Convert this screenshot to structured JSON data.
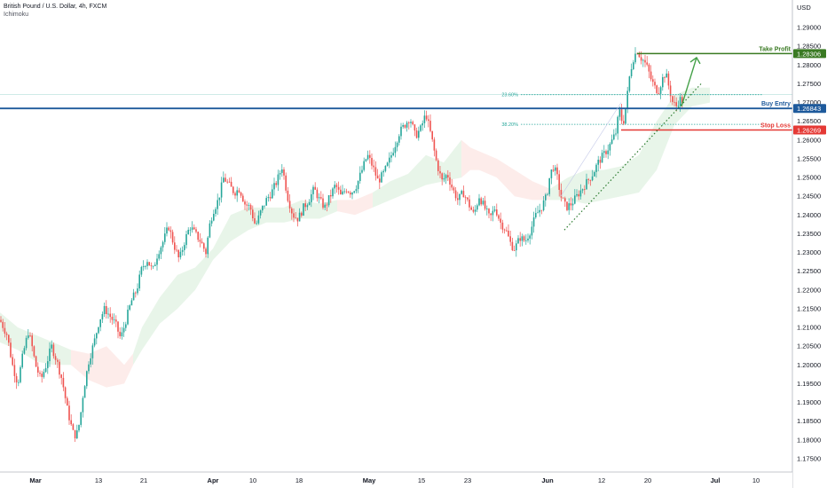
{
  "header": {
    "symbol_line": "British Pound / U.S. Dollar, 4h, FXCM",
    "indicator": "Ichimoku"
  },
  "chart_data": {
    "type": "candlestick",
    "title": "British Pound / U.S. Dollar, 4h, FXCM",
    "ylabel": "USD",
    "ylim": [
      1.17,
      1.295
    ],
    "y_ticks": [
      "1.29000",
      "1.28500",
      "1.28000",
      "1.27500",
      "1.27000",
      "1.26500",
      "1.26000",
      "1.25500",
      "1.25000",
      "1.24500",
      "1.24000",
      "1.23500",
      "1.23000",
      "1.22500",
      "1.22000",
      "1.21500",
      "1.21000",
      "1.20500",
      "1.20000",
      "1.19500",
      "1.19000",
      "1.18500",
      "1.18000",
      "1.17500"
    ],
    "x_labels": [
      "Mar",
      "13",
      "21",
      "Apr",
      "10",
      "18",
      "May",
      "15",
      "23",
      "Jun",
      "12",
      "20",
      "Jul",
      "10"
    ],
    "price_path": [
      [
        0,
        1.212
      ],
      [
        8,
        1.208
      ],
      [
        14,
        1.2
      ],
      [
        20,
        1.195
      ],
      [
        26,
        1.203
      ],
      [
        32,
        1.209
      ],
      [
        36,
        1.205
      ],
      [
        40,
        1.2
      ],
      [
        46,
        1.196
      ],
      [
        52,
        1.2
      ],
      [
        58,
        1.205
      ],
      [
        64,
        1.201
      ],
      [
        70,
        1.196
      ],
      [
        76,
        1.188
      ],
      [
        82,
        1.182
      ],
      [
        86,
        1.181
      ],
      [
        90,
        1.185
      ],
      [
        94,
        1.193
      ],
      [
        100,
        1.201
      ],
      [
        106,
        1.206
      ],
      [
        112,
        1.212
      ],
      [
        118,
        1.215
      ],
      [
        124,
        1.213
      ],
      [
        130,
        1.211
      ],
      [
        136,
        1.207
      ],
      [
        142,
        1.212
      ],
      [
        148,
        1.217
      ],
      [
        154,
        1.22
      ],
      [
        160,
        1.226
      ],
      [
        166,
        1.228
      ],
      [
        172,
        1.225
      ],
      [
        178,
        1.23
      ],
      [
        184,
        1.233
      ],
      [
        190,
        1.237
      ],
      [
        196,
        1.232
      ],
      [
        202,
        1.228
      ],
      [
        208,
        1.233
      ],
      [
        214,
        1.237
      ],
      [
        220,
        1.235
      ],
      [
        226,
        1.233
      ],
      [
        232,
        1.23
      ],
      [
        236,
        1.237
      ],
      [
        240,
        1.241
      ],
      [
        246,
        1.244
      ],
      [
        252,
        1.25
      ],
      [
        258,
        1.248
      ],
      [
        264,
        1.246
      ],
      [
        270,
        1.247
      ],
      [
        276,
        1.243
      ],
      [
        282,
        1.242
      ],
      [
        288,
        1.237
      ],
      [
        294,
        1.241
      ],
      [
        300,
        1.244
      ],
      [
        306,
        1.246
      ],
      [
        312,
        1.249
      ],
      [
        318,
        1.253
      ],
      [
        324,
        1.245
      ],
      [
        330,
        1.24
      ],
      [
        336,
        1.239
      ],
      [
        342,
        1.242
      ],
      [
        348,
        1.244
      ],
      [
        354,
        1.247
      ],
      [
        360,
        1.244
      ],
      [
        366,
        1.242
      ],
      [
        372,
        1.245
      ],
      [
        378,
        1.248
      ],
      [
        384,
        1.245
      ],
      [
        390,
        1.247
      ],
      [
        396,
        1.246
      ],
      [
        402,
        1.248
      ],
      [
        408,
        1.252
      ],
      [
        414,
        1.256
      ],
      [
        420,
        1.253
      ],
      [
        426,
        1.249
      ],
      [
        432,
        1.251
      ],
      [
        438,
        1.254
      ],
      [
        444,
        1.258
      ],
      [
        450,
        1.262
      ],
      [
        456,
        1.264
      ],
      [
        462,
        1.266
      ],
      [
        468,
        1.261
      ],
      [
        474,
        1.263
      ],
      [
        480,
        1.267
      ],
      [
        486,
        1.261
      ],
      [
        492,
        1.254
      ],
      [
        498,
        1.249
      ],
      [
        504,
        1.251
      ],
      [
        510,
        1.247
      ],
      [
        516,
        1.244
      ],
      [
        522,
        1.246
      ],
      [
        528,
        1.243
      ],
      [
        534,
        1.24
      ],
      [
        540,
        1.245
      ],
      [
        546,
        1.242
      ],
      [
        552,
        1.239
      ],
      [
        558,
        1.242
      ],
      [
        564,
        1.238
      ],
      [
        570,
        1.236
      ],
      [
        576,
        1.232
      ],
      [
        580,
        1.231
      ],
      [
        586,
        1.234
      ],
      [
        592,
        1.233
      ],
      [
        598,
        1.236
      ],
      [
        604,
        1.24
      ],
      [
        610,
        1.242
      ],
      [
        616,
        1.245
      ],
      [
        620,
        1.251
      ],
      [
        624,
        1.253
      ],
      [
        628,
        1.25
      ],
      [
        632,
        1.245
      ],
      [
        638,
        1.242
      ],
      [
        644,
        1.243
      ],
      [
        650,
        1.245
      ],
      [
        656,
        1.247
      ],
      [
        662,
        1.249
      ],
      [
        668,
        1.251
      ],
      [
        674,
        1.254
      ],
      [
        680,
        1.256
      ],
      [
        686,
        1.258
      ],
      [
        690,
        1.26
      ],
      [
        694,
        1.262
      ],
      [
        698,
        1.268
      ],
      [
        702,
        1.264
      ],
      [
        706,
        1.27
      ],
      [
        710,
        1.278
      ],
      [
        714,
        1.282
      ],
      [
        718,
        1.284
      ],
      [
        722,
        1.282
      ],
      [
        726,
        1.281
      ],
      [
        730,
        1.279
      ],
      [
        734,
        1.276
      ],
      [
        738,
        1.274
      ],
      [
        742,
        1.273
      ],
      [
        746,
        1.276
      ],
      [
        750,
        1.278
      ],
      [
        754,
        1.274
      ],
      [
        758,
        1.27
      ],
      [
        762,
        1.269
      ],
      [
        766,
        1.271
      ],
      [
        770,
        1.27
      ]
    ],
    "cloud_path": [
      [
        0,
        1.206,
        1.214
      ],
      [
        20,
        1.204,
        1.21
      ],
      [
        40,
        1.201,
        1.208
      ],
      [
        60,
        1.2,
        1.206
      ],
      [
        80,
        1.2,
        1.204
      ],
      [
        100,
        1.196,
        1.203
      ],
      [
        120,
        1.194,
        1.205
      ],
      [
        140,
        1.195,
        1.2
      ],
      [
        150,
        1.2,
        1.203
      ],
      [
        160,
        1.204,
        1.21
      ],
      [
        180,
        1.211,
        1.218
      ],
      [
        200,
        1.215,
        1.224
      ],
      [
        220,
        1.22,
        1.226
      ],
      [
        240,
        1.228,
        1.231
      ],
      [
        260,
        1.233,
        1.24
      ],
      [
        280,
        1.236,
        1.242
      ],
      [
        300,
        1.238,
        1.242
      ],
      [
        320,
        1.238,
        1.242
      ],
      [
        340,
        1.239,
        1.244
      ],
      [
        360,
        1.239,
        1.243
      ],
      [
        380,
        1.241,
        1.244
      ],
      [
        400,
        1.24,
        1.244
      ],
      [
        420,
        1.242,
        1.246
      ],
      [
        440,
        1.244,
        1.249
      ],
      [
        460,
        1.246,
        1.251
      ],
      [
        480,
        1.248,
        1.256
      ],
      [
        500,
        1.249,
        1.254
      ],
      [
        520,
        1.25,
        1.26
      ],
      [
        530,
        1.252,
        1.258
      ],
      [
        540,
        1.252,
        1.257
      ],
      [
        560,
        1.25,
        1.255
      ],
      [
        580,
        1.245,
        1.252
      ],
      [
        600,
        1.244,
        1.249
      ],
      [
        620,
        1.244,
        1.247
      ],
      [
        640,
        1.244,
        1.25
      ],
      [
        660,
        1.243,
        1.252
      ],
      [
        680,
        1.244,
        1.252
      ],
      [
        700,
        1.245,
        1.253
      ],
      [
        720,
        1.246,
        1.256
      ],
      [
        740,
        1.252,
        1.265
      ],
      [
        760,
        1.264,
        1.272
      ],
      [
        780,
        1.269,
        1.274
      ],
      [
        800,
        1.27,
        1.274
      ]
    ],
    "levels": [
      {
        "label": "Take Profit",
        "value": "1.28306",
        "price": 1.28306,
        "color": "#3a7a23"
      },
      {
        "label": "Buy Entry",
        "value": "1.26843",
        "price": 1.26843,
        "color": "#1e5a9c"
      },
      {
        "label": "Stop Loss",
        "value": "1.26269",
        "price": 1.26269,
        "color": "#e53935"
      }
    ],
    "fibs": [
      {
        "label": "23.60%",
        "price": 1.2721
      },
      {
        "label": "38.20%",
        "price": 1.2642
      }
    ],
    "trendline": [
      [
        636,
        1.236
      ],
      [
        790,
        1.275
      ]
    ],
    "arrow": [
      [
        768,
        1.269
      ],
      [
        785,
        1.282
      ]
    ],
    "colors": {
      "up": "#26a69a",
      "down": "#ef5350",
      "cloud_up": "#e8f5e9",
      "cloud_down": "#fdecea"
    },
    "grid": false,
    "legend": "none"
  }
}
